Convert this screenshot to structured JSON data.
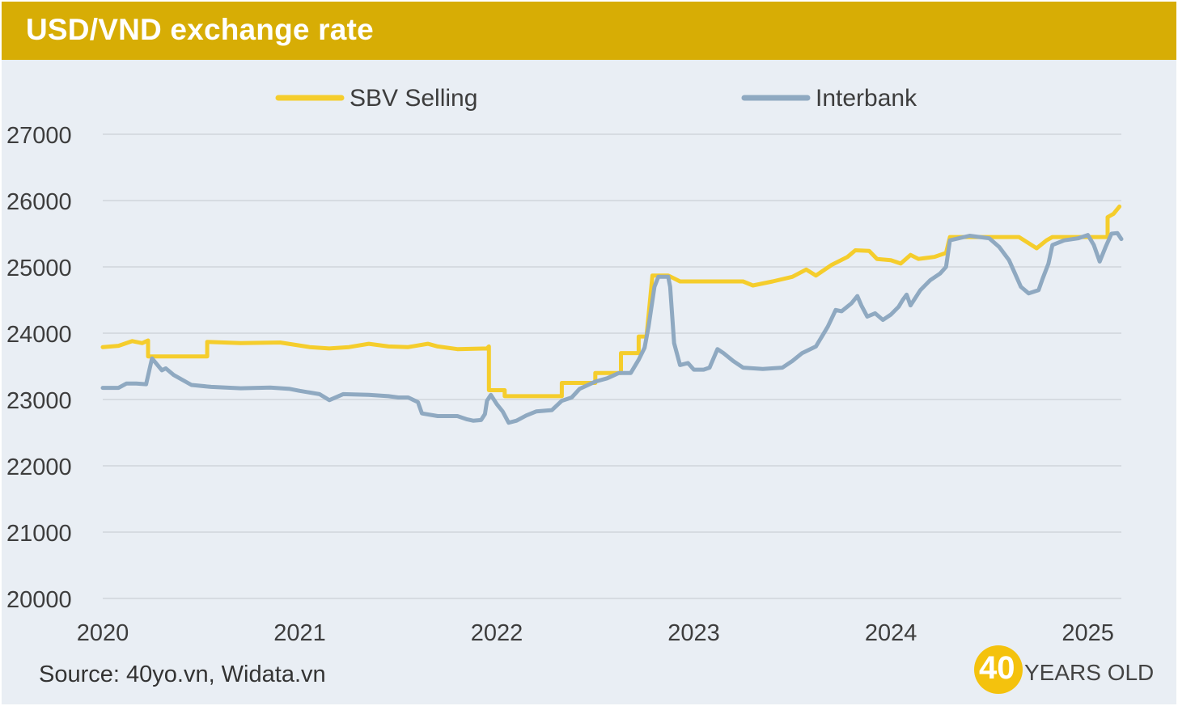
{
  "title": "USD/VND exchange rate",
  "source": "Source: 40yo.vn, Widata.vn",
  "logo": {
    "number": "40",
    "text": "YEARS OLD"
  },
  "colors": {
    "title_bar": "#d7ad05",
    "background": "#e9eef4",
    "sbv": "#f5cd2c",
    "interbank": "#8fa9c1",
    "gridline": "#d6dbe1"
  },
  "chart_data": {
    "type": "line",
    "title": "USD/VND exchange rate",
    "xlabel": "",
    "ylabel": "",
    "xlim": [
      2020.0,
      2025.17
    ],
    "ylim": [
      20000,
      27000
    ],
    "yticks": [
      20000,
      21000,
      22000,
      23000,
      24000,
      25000,
      26000,
      27000
    ],
    "xticks": [
      2020,
      2021,
      2022,
      2023,
      2024,
      2025
    ],
    "grid": true,
    "legend_position": "top",
    "series": [
      {
        "name": "SBV Selling",
        "color": "#f5cd2c",
        "points": [
          [
            2020.0,
            23790
          ],
          [
            2020.08,
            23810
          ],
          [
            2020.15,
            23880
          ],
          [
            2020.2,
            23850
          ],
          [
            2020.23,
            23890
          ],
          [
            2020.23,
            23650
          ],
          [
            2020.53,
            23650
          ],
          [
            2020.53,
            23870
          ],
          [
            2020.7,
            23850
          ],
          [
            2020.9,
            23860
          ],
          [
            2021.05,
            23790
          ],
          [
            2021.15,
            23770
          ],
          [
            2021.25,
            23790
          ],
          [
            2021.35,
            23840
          ],
          [
            2021.45,
            23800
          ],
          [
            2021.55,
            23790
          ],
          [
            2021.65,
            23840
          ],
          [
            2021.7,
            23800
          ],
          [
            2021.8,
            23760
          ],
          [
            2021.95,
            23770
          ],
          [
            2021.96,
            23800
          ],
          [
            2021.96,
            23140
          ],
          [
            2022.04,
            23140
          ],
          [
            2022.04,
            23050
          ],
          [
            2022.33,
            23050
          ],
          [
            2022.33,
            23250
          ],
          [
            2022.5,
            23250
          ],
          [
            2022.5,
            23400
          ],
          [
            2022.63,
            23400
          ],
          [
            2022.63,
            23700
          ],
          [
            2022.72,
            23700
          ],
          [
            2022.72,
            23950
          ],
          [
            2022.76,
            23950
          ],
          [
            2022.79,
            24870
          ],
          [
            2022.87,
            24870
          ],
          [
            2022.93,
            24780
          ],
          [
            2023.25,
            24780
          ],
          [
            2023.3,
            24720
          ],
          [
            2023.4,
            24780
          ],
          [
            2023.5,
            24850
          ],
          [
            2023.57,
            24960
          ],
          [
            2023.62,
            24870
          ],
          [
            2023.7,
            25030
          ],
          [
            2023.78,
            25150
          ],
          [
            2023.82,
            25250
          ],
          [
            2023.89,
            25240
          ],
          [
            2023.93,
            25120
          ],
          [
            2024.0,
            25100
          ],
          [
            2024.05,
            25050
          ],
          [
            2024.1,
            25180
          ],
          [
            2024.14,
            25120
          ],
          [
            2024.22,
            25150
          ],
          [
            2024.28,
            25210
          ],
          [
            2024.3,
            25450
          ],
          [
            2024.65,
            25450
          ],
          [
            2024.74,
            25280
          ],
          [
            2024.79,
            25400
          ],
          [
            2024.82,
            25450
          ],
          [
            2025.1,
            25450
          ],
          [
            2025.1,
            25750
          ],
          [
            2025.13,
            25800
          ],
          [
            2025.16,
            25910
          ]
        ]
      },
      {
        "name": "Interbank",
        "color": "#8fa9c1",
        "points": [
          [
            2020.0,
            23175
          ],
          [
            2020.08,
            23175
          ],
          [
            2020.12,
            23240
          ],
          [
            2020.17,
            23240
          ],
          [
            2020.22,
            23230
          ],
          [
            2020.25,
            23620
          ],
          [
            2020.3,
            23440
          ],
          [
            2020.32,
            23470
          ],
          [
            2020.36,
            23370
          ],
          [
            2020.45,
            23220
          ],
          [
            2020.55,
            23190
          ],
          [
            2020.7,
            23170
          ],
          [
            2020.85,
            23180
          ],
          [
            2020.95,
            23160
          ],
          [
            2021.0,
            23130
          ],
          [
            2021.1,
            23080
          ],
          [
            2021.15,
            22990
          ],
          [
            2021.22,
            23080
          ],
          [
            2021.35,
            23070
          ],
          [
            2021.45,
            23050
          ],
          [
            2021.5,
            23030
          ],
          [
            2021.55,
            23030
          ],
          [
            2021.6,
            22960
          ],
          [
            2021.62,
            22790
          ],
          [
            2021.7,
            22750
          ],
          [
            2021.8,
            22750
          ],
          [
            2021.85,
            22700
          ],
          [
            2021.88,
            22680
          ],
          [
            2021.92,
            22690
          ],
          [
            2021.94,
            22780
          ],
          [
            2021.95,
            22980
          ],
          [
            2021.97,
            23070
          ],
          [
            2022.0,
            22930
          ],
          [
            2022.03,
            22820
          ],
          [
            2022.06,
            22650
          ],
          [
            2022.1,
            22680
          ],
          [
            2022.15,
            22760
          ],
          [
            2022.2,
            22820
          ],
          [
            2022.28,
            22840
          ],
          [
            2022.33,
            22980
          ],
          [
            2022.38,
            23030
          ],
          [
            2022.42,
            23160
          ],
          [
            2022.5,
            23270
          ],
          [
            2022.56,
            23320
          ],
          [
            2022.62,
            23400
          ],
          [
            2022.68,
            23400
          ],
          [
            2022.72,
            23600
          ],
          [
            2022.75,
            23780
          ],
          [
            2022.77,
            24100
          ],
          [
            2022.8,
            24700
          ],
          [
            2022.82,
            24850
          ],
          [
            2022.87,
            24850
          ],
          [
            2022.88,
            24700
          ],
          [
            2022.9,
            23850
          ],
          [
            2022.93,
            23520
          ],
          [
            2022.97,
            23550
          ],
          [
            2023.0,
            23450
          ],
          [
            2023.05,
            23450
          ],
          [
            2023.08,
            23480
          ],
          [
            2023.12,
            23760
          ],
          [
            2023.15,
            23700
          ],
          [
            2023.2,
            23580
          ],
          [
            2023.25,
            23480
          ],
          [
            2023.35,
            23460
          ],
          [
            2023.45,
            23480
          ],
          [
            2023.5,
            23580
          ],
          [
            2023.55,
            23700
          ],
          [
            2023.62,
            23800
          ],
          [
            2023.68,
            24100
          ],
          [
            2023.72,
            24350
          ],
          [
            2023.75,
            24330
          ],
          [
            2023.8,
            24450
          ],
          [
            2023.83,
            24560
          ],
          [
            2023.85,
            24420
          ],
          [
            2023.88,
            24250
          ],
          [
            2023.92,
            24300
          ],
          [
            2023.96,
            24200
          ],
          [
            2024.0,
            24280
          ],
          [
            2024.04,
            24400
          ],
          [
            2024.06,
            24500
          ],
          [
            2024.08,
            24580
          ],
          [
            2024.1,
            24420
          ],
          [
            2024.15,
            24650
          ],
          [
            2024.2,
            24800
          ],
          [
            2024.25,
            24900
          ],
          [
            2024.28,
            25000
          ],
          [
            2024.3,
            25400
          ],
          [
            2024.4,
            25470
          ],
          [
            2024.5,
            25430
          ],
          [
            2024.55,
            25300
          ],
          [
            2024.6,
            25100
          ],
          [
            2024.63,
            24900
          ],
          [
            2024.66,
            24700
          ],
          [
            2024.7,
            24600
          ],
          [
            2024.75,
            24650
          ],
          [
            2024.77,
            24820
          ],
          [
            2024.8,
            25050
          ],
          [
            2024.82,
            25330
          ],
          [
            2024.88,
            25400
          ],
          [
            2024.95,
            25430
          ],
          [
            2025.0,
            25480
          ],
          [
            2025.03,
            25330
          ],
          [
            2025.06,
            25080
          ],
          [
            2025.09,
            25300
          ],
          [
            2025.12,
            25500
          ],
          [
            2025.15,
            25510
          ],
          [
            2025.17,
            25420
          ]
        ]
      }
    ]
  }
}
